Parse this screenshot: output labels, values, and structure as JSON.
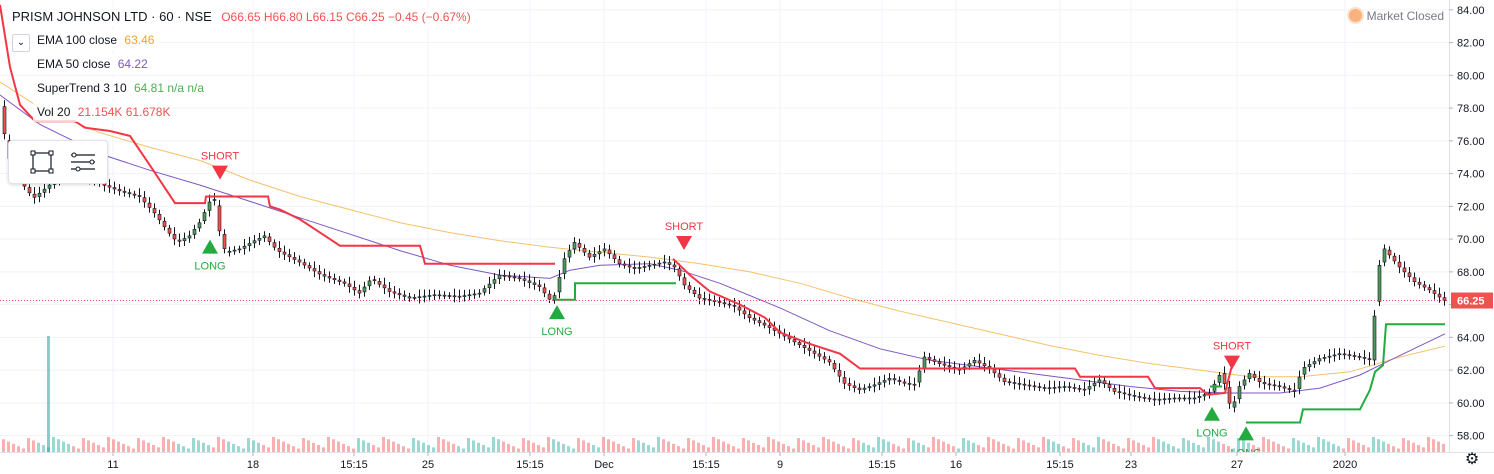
{
  "header": {
    "symbol": "PRISM JOHNSON LTD · 60 · NSE",
    "ohlc": "O66.65 H66.80 L66.15 C66.25 −0.45 (−0.67%)",
    "market_status": "Market Closed"
  },
  "indicators": [
    {
      "label": "EMA 100 close",
      "value": "63.46",
      "color": "#f5a623"
    },
    {
      "label": "EMA 50 close",
      "value": "64.22",
      "color": "#7e57c2"
    },
    {
      "label": "SuperTrend 3 10",
      "value": "64.81  n/a  n/a",
      "color": "#4caf50",
      "value_color": "#4caf50",
      "extra_color": "#ef5350"
    },
    {
      "label": "Vol 20",
      "value": "21.154K  61.678K",
      "color": "#ef5350"
    }
  ],
  "colors": {
    "up": "#26a69a",
    "up_body": "#4f9a5a",
    "down": "#ef5350",
    "ema100": "#f5c16c",
    "ema50": "#7e57c2",
    "st_red": "#f23645",
    "st_green": "#22ab3f",
    "price_tag": "#ef5350",
    "grid": "#f0f3fa"
  },
  "icons": {
    "collapse": "chevron-down-icon",
    "rect_tool": "rectangle-icon",
    "list_tool": "menu-lines-icon",
    "settings": "gear-icon"
  },
  "chart_data": {
    "type": "candlestick",
    "title": "PRISM JOHNSON LTD · 60 · NSE",
    "ylim": [
      57.0,
      84.6
    ],
    "y_ticks": [
      "84.00",
      "82.00",
      "80.00",
      "78.00",
      "76.00",
      "74.00",
      "72.00",
      "70.00",
      "68.00",
      "66.00",
      "64.00",
      "62.00",
      "60.00",
      "58.00"
    ],
    "x_ticks": [
      "11",
      "18",
      "15:15",
      "25",
      "15:15",
      "Dec",
      "15:15",
      "9",
      "15:15",
      "16",
      "15:15",
      "23",
      "27",
      "2020"
    ],
    "last_price": "66.25",
    "price_path": [
      [
        0,
        78.5
      ],
      [
        8,
        75.2
      ],
      [
        18,
        73.8
      ],
      [
        34,
        72.5
      ],
      [
        50,
        73.3
      ],
      [
        70,
        74.0
      ],
      [
        100,
        73.4
      ],
      [
        122,
        72.9
      ],
      [
        140,
        72.6
      ],
      [
        155,
        71.6
      ],
      [
        168,
        70.5
      ],
      [
        178,
        69.8
      ],
      [
        190,
        70.2
      ],
      [
        200,
        71.0
      ],
      [
        208,
        72.0
      ],
      [
        214,
        72.8
      ],
      [
        220,
        70.5
      ],
      [
        226,
        69.2
      ],
      [
        240,
        69.4
      ],
      [
        255,
        69.9
      ],
      [
        265,
        70.2
      ],
      [
        278,
        69.3
      ],
      [
        300,
        68.6
      ],
      [
        322,
        67.8
      ],
      [
        345,
        67.3
      ],
      [
        360,
        66.7
      ],
      [
        372,
        67.6
      ],
      [
        390,
        66.8
      ],
      [
        410,
        66.4
      ],
      [
        435,
        66.6
      ],
      [
        460,
        66.5
      ],
      [
        480,
        66.7
      ],
      [
        500,
        67.8
      ],
      [
        520,
        67.6
      ],
      [
        540,
        67.1
      ],
      [
        553,
        66.1
      ],
      [
        565,
        68.8
      ],
      [
        575,
        69.8
      ],
      [
        590,
        68.9
      ],
      [
        605,
        69.4
      ],
      [
        620,
        68.5
      ],
      [
        635,
        68.2
      ],
      [
        650,
        68.4
      ],
      [
        665,
        68.6
      ],
      [
        675,
        68.3
      ],
      [
        685,
        67.2
      ],
      [
        700,
        66.4
      ],
      [
        715,
        66.2
      ],
      [
        735,
        65.9
      ],
      [
        750,
        65.2
      ],
      [
        770,
        64.6
      ],
      [
        790,
        63.9
      ],
      [
        810,
        63.2
      ],
      [
        830,
        62.5
      ],
      [
        845,
        61.2
      ],
      [
        860,
        60.8
      ],
      [
        875,
        61.1
      ],
      [
        890,
        61.5
      ],
      [
        905,
        61.2
      ],
      [
        915,
        61.1
      ],
      [
        925,
        62.8
      ],
      [
        940,
        62.4
      ],
      [
        960,
        62.0
      ],
      [
        975,
        62.6
      ],
      [
        990,
        62.1
      ],
      [
        1005,
        61.3
      ],
      [
        1025,
        61.1
      ],
      [
        1045,
        60.9
      ],
      [
        1065,
        61.0
      ],
      [
        1085,
        60.8
      ],
      [
        1100,
        61.4
      ],
      [
        1115,
        60.7
      ],
      [
        1135,
        60.4
      ],
      [
        1155,
        60.2
      ],
      [
        1175,
        60.3
      ],
      [
        1195,
        60.3
      ],
      [
        1210,
        60.6
      ],
      [
        1222,
        61.9
      ],
      [
        1232,
        59.5
      ],
      [
        1240,
        61.0
      ],
      [
        1250,
        61.8
      ],
      [
        1262,
        61.2
      ],
      [
        1280,
        61.0
      ],
      [
        1295,
        60.7
      ],
      [
        1303,
        62.1
      ],
      [
        1320,
        62.7
      ],
      [
        1340,
        63.0
      ],
      [
        1360,
        62.8
      ],
      [
        1372,
        62.6
      ],
      [
        1378,
        68.0
      ],
      [
        1385,
        69.4
      ],
      [
        1400,
        68.3
      ],
      [
        1415,
        67.4
      ],
      [
        1430,
        66.9
      ],
      [
        1445,
        66.25
      ]
    ],
    "ema100": [
      [
        0,
        79.6
      ],
      [
        40,
        78.0
      ],
      [
        100,
        76.5
      ],
      [
        150,
        75.6
      ],
      [
        200,
        74.8
      ],
      [
        250,
        73.6
      ],
      [
        300,
        72.6
      ],
      [
        350,
        71.8
      ],
      [
        400,
        71.0
      ],
      [
        450,
        70.4
      ],
      [
        500,
        69.9
      ],
      [
        550,
        69.5
      ],
      [
        600,
        69.2
      ],
      [
        650,
        68.9
      ],
      [
        700,
        68.5
      ],
      [
        750,
        68.0
      ],
      [
        800,
        67.3
      ],
      [
        850,
        66.4
      ],
      [
        900,
        65.6
      ],
      [
        950,
        64.9
      ],
      [
        1000,
        64.2
      ],
      [
        1050,
        63.5
      ],
      [
        1100,
        62.9
      ],
      [
        1150,
        62.4
      ],
      [
        1200,
        62.0
      ],
      [
        1250,
        61.6
      ],
      [
        1300,
        61.6
      ],
      [
        1350,
        61.9
      ],
      [
        1400,
        62.8
      ],
      [
        1445,
        63.46
      ]
    ],
    "ema50": [
      [
        0,
        78.8
      ],
      [
        40,
        77.0
      ],
      [
        100,
        75.2
      ],
      [
        150,
        74.2
      ],
      [
        200,
        73.3
      ],
      [
        250,
        72.3
      ],
      [
        300,
        71.3
      ],
      [
        350,
        70.3
      ],
      [
        400,
        69.3
      ],
      [
        450,
        68.4
      ],
      [
        500,
        67.8
      ],
      [
        550,
        67.6
      ],
      [
        570,
        68.1
      ],
      [
        600,
        68.4
      ],
      [
        650,
        68.5
      ],
      [
        680,
        68.1
      ],
      [
        720,
        67.3
      ],
      [
        780,
        65.8
      ],
      [
        830,
        64.4
      ],
      [
        880,
        63.3
      ],
      [
        930,
        62.6
      ],
      [
        980,
        62.2
      ],
      [
        1030,
        61.8
      ],
      [
        1080,
        61.4
      ],
      [
        1130,
        61.0
      ],
      [
        1180,
        60.7
      ],
      [
        1230,
        60.6
      ],
      [
        1280,
        60.6
      ],
      [
        1320,
        60.9
      ],
      [
        1360,
        61.7
      ],
      [
        1400,
        62.9
      ],
      [
        1445,
        64.22
      ]
    ],
    "supertrend_red": [
      [
        0,
        84.3
      ],
      [
        10,
        80.5
      ],
      [
        20,
        78.2
      ],
      [
        35,
        77.2
      ],
      [
        75,
        77.2
      ],
      [
        85,
        76.8
      ],
      [
        110,
        76.6
      ],
      [
        130,
        76.3
      ],
      [
        150,
        74.5
      ],
      [
        175,
        72.2
      ],
      [
        205,
        72.2
      ],
      [
        206,
        72.6
      ],
      [
        215,
        72.6
      ],
      [
        215,
        72.6
      ],
      [
        268,
        72.6
      ],
      [
        270,
        72.0
      ],
      [
        280,
        71.8
      ],
      [
        300,
        71.2
      ],
      [
        320,
        70.4
      ],
      [
        340,
        69.6
      ],
      [
        420,
        69.6
      ],
      [
        425,
        68.5
      ],
      [
        555,
        68.5
      ],
      null,
      [
        673,
        68.8
      ],
      [
        690,
        67.8
      ],
      [
        710,
        66.8
      ],
      [
        740,
        66.0
      ],
      [
        765,
        65.2
      ],
      [
        780,
        64.3
      ],
      [
        810,
        63.6
      ],
      [
        840,
        63.0
      ],
      [
        860,
        62.1
      ],
      [
        1075,
        62.1
      ],
      [
        1080,
        61.6
      ],
      [
        1148,
        61.6
      ],
      [
        1155,
        60.9
      ],
      [
        1200,
        60.9
      ],
      [
        1208,
        60.5
      ],
      [
        1225,
        60.6
      ],
      [
        1232,
        62.3
      ]
    ],
    "supertrend_green": [
      [
        555,
        66.3
      ],
      [
        575,
        66.3
      ],
      [
        575,
        67.3
      ],
      [
        676,
        67.3
      ],
      null,
      [
        1210,
        61.0
      ],
      [
        1222,
        61.0
      ],
      null,
      [
        1246,
        58.8
      ],
      [
        1300,
        58.8
      ],
      [
        1303,
        59.6
      ],
      [
        1360,
        59.6
      ],
      [
        1370,
        60.8
      ],
      [
        1375,
        61.9
      ],
      [
        1383,
        62.3
      ],
      [
        1386,
        64.8
      ],
      [
        1445,
        64.8
      ]
    ],
    "signals": [
      {
        "type": "SHORT",
        "x": 220,
        "price": 74.0
      },
      {
        "type": "LONG",
        "x": 210,
        "price": 69.6
      },
      {
        "type": "LONG",
        "x": 557,
        "price": 65.6
      },
      {
        "type": "SHORT",
        "x": 684,
        "price": 69.7
      },
      {
        "type": "SHORT",
        "x": 1232,
        "price": 62.4
      },
      {
        "type": "LONG",
        "x": 1212,
        "price": 59.4
      },
      {
        "type": "LONG",
        "x": 1246,
        "price": 58.2
      }
    ],
    "volume_spikes": [
      [
        50,
        100
      ],
      [
        913,
        40
      ],
      [
        215,
        22
      ],
      [
        833,
        20
      ],
      [
        1384,
        16
      ],
      [
        1380,
        12
      ],
      [
        780,
        8
      ]
    ]
  }
}
